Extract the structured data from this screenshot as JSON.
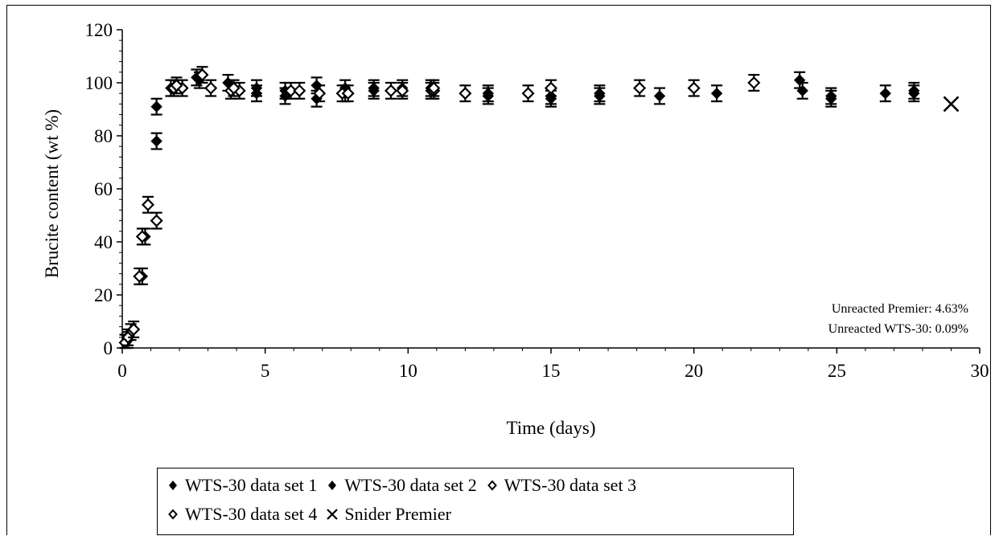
{
  "chart_data": {
    "type": "scatter",
    "xlabel": "Time (days)",
    "ylabel": "Brucite content (wt %)",
    "xlim": [
      0,
      30
    ],
    "ylim": [
      0,
      120
    ],
    "xticks": [
      "0",
      "5",
      "10",
      "15",
      "20",
      "25",
      "30"
    ],
    "yticks": [
      "0",
      "20",
      "40",
      "60",
      "80",
      "100",
      "120"
    ],
    "grid": false,
    "legend_position": "bottom",
    "annotations": [
      "Unreacted Premier: 4.63%",
      "Unreacted WTS-30: 0.09%"
    ],
    "error_bar": 3,
    "series": [
      {
        "name": "WTS-30 data set 1",
        "marker": "filled-diamond",
        "points": [
          [
            0.1,
            2
          ],
          [
            0.7,
            27
          ],
          [
            1.2,
            78
          ],
          [
            1.2,
            91
          ],
          [
            2.7,
            101
          ],
          [
            3.7,
            100
          ],
          [
            4.7,
            98
          ],
          [
            5.7,
            95
          ],
          [
            6.8,
            99
          ],
          [
            7.8,
            98
          ],
          [
            8.8,
            97
          ],
          [
            9.8,
            98
          ],
          [
            10.8,
            97
          ],
          [
            12.8,
            96
          ],
          [
            15.0,
            95
          ],
          [
            16.7,
            95
          ],
          [
            18.8,
            95
          ],
          [
            20.8,
            96
          ],
          [
            23.7,
            101
          ],
          [
            24.8,
            95
          ],
          [
            26.7,
            96
          ],
          [
            27.7,
            97
          ]
        ]
      },
      {
        "name": "WTS-30 data set 2",
        "marker": "filled-diamond",
        "points": [
          [
            0.2,
            3
          ],
          [
            0.8,
            42
          ],
          [
            1.7,
            98
          ],
          [
            2.6,
            102
          ],
          [
            4.7,
            96
          ],
          [
            5.7,
            97
          ],
          [
            6.8,
            94
          ],
          [
            7.8,
            96
          ],
          [
            8.8,
            98
          ],
          [
            10.8,
            98
          ],
          [
            12.8,
            95
          ],
          [
            15.0,
            94
          ],
          [
            16.7,
            96
          ],
          [
            23.8,
            97
          ],
          [
            24.8,
            94
          ],
          [
            27.7,
            96
          ]
        ]
      },
      {
        "name": "WTS-30 data set 3",
        "marker": "open-diamond",
        "points": [
          [
            0.3,
            6
          ],
          [
            0.7,
            42
          ],
          [
            0.9,
            54
          ],
          [
            1.2,
            48
          ],
          [
            1.8,
            98
          ],
          [
            2.1,
            98
          ],
          [
            2.8,
            103
          ],
          [
            3.1,
            98
          ],
          [
            3.8,
            97
          ],
          [
            4.1,
            97
          ],
          [
            5.9,
            97
          ],
          [
            6.9,
            96
          ],
          [
            7.7,
            96
          ],
          [
            9.4,
            97
          ],
          [
            9.8,
            97
          ],
          [
            10.9,
            97
          ],
          [
            12.0,
            96
          ],
          [
            14.2,
            96
          ],
          [
            15.0,
            98
          ],
          [
            18.1,
            98
          ],
          [
            20.0,
            98
          ],
          [
            22.1,
            100
          ]
        ]
      },
      {
        "name": "WTS-30 data set 4",
        "marker": "open-diamond",
        "points": [
          [
            0.1,
            2
          ],
          [
            0.2,
            4
          ],
          [
            0.4,
            7
          ],
          [
            0.6,
            27
          ],
          [
            1.9,
            99
          ],
          [
            3.9,
            98
          ],
          [
            6.2,
            97
          ],
          [
            7.9,
            96
          ],
          [
            10.9,
            98
          ]
        ]
      },
      {
        "name": "Snider Premier",
        "marker": "x",
        "points": [
          [
            29.0,
            92
          ]
        ]
      }
    ]
  }
}
